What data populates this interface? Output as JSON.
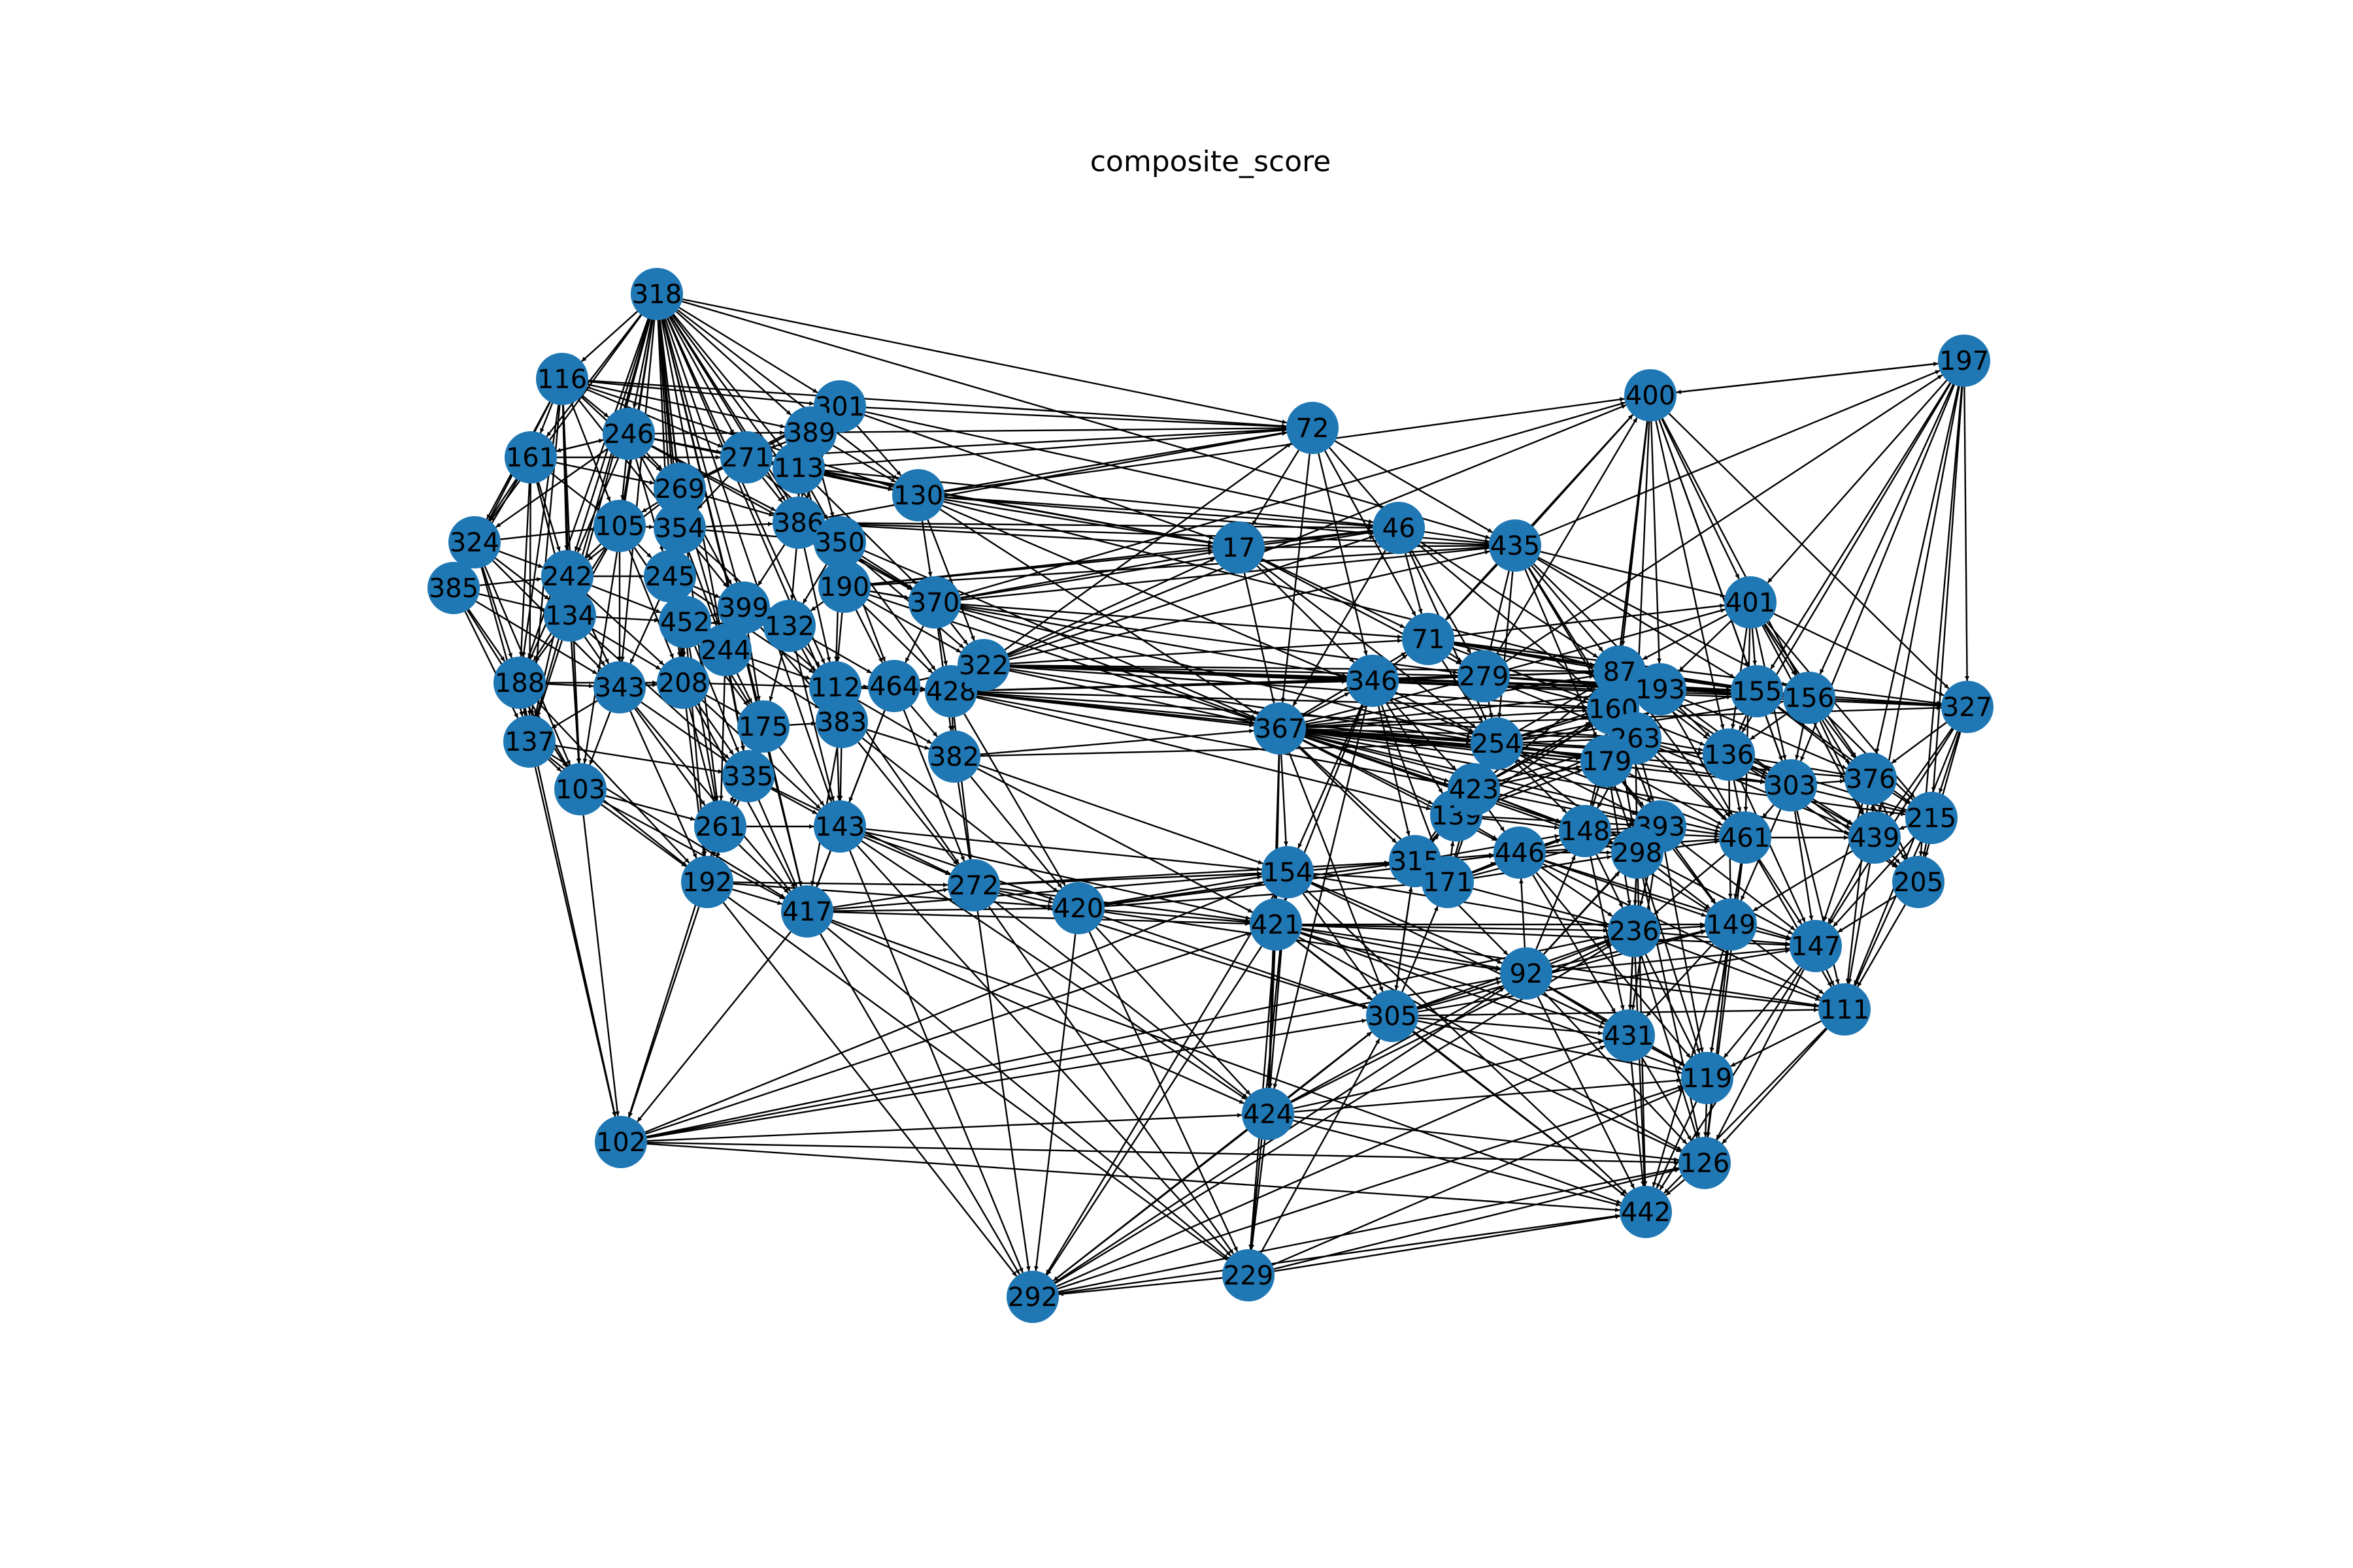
{
  "title": "composite_score",
  "style": {
    "node_color": "#1f77b4",
    "edge_color": "#000000",
    "label_color": "#000000",
    "background": "#ffffff"
  },
  "nodes": [
    {
      "id": "318"
    },
    {
      "id": "116"
    },
    {
      "id": "301"
    },
    {
      "id": "389"
    },
    {
      "id": "246"
    },
    {
      "id": "161"
    },
    {
      "id": "271"
    },
    {
      "id": "113"
    },
    {
      "id": "130"
    },
    {
      "id": "269"
    },
    {
      "id": "324"
    },
    {
      "id": "105"
    },
    {
      "id": "354"
    },
    {
      "id": "386"
    },
    {
      "id": "350"
    },
    {
      "id": "385"
    },
    {
      "id": "242"
    },
    {
      "id": "245"
    },
    {
      "id": "134"
    },
    {
      "id": "452"
    },
    {
      "id": "399"
    },
    {
      "id": "190"
    },
    {
      "id": "370"
    },
    {
      "id": "132"
    },
    {
      "id": "244"
    },
    {
      "id": "188"
    },
    {
      "id": "343"
    },
    {
      "id": "208"
    },
    {
      "id": "112"
    },
    {
      "id": "464"
    },
    {
      "id": "428"
    },
    {
      "id": "322"
    },
    {
      "id": "137"
    },
    {
      "id": "175"
    },
    {
      "id": "383"
    },
    {
      "id": "382"
    },
    {
      "id": "103"
    },
    {
      "id": "335"
    },
    {
      "id": "261"
    },
    {
      "id": "143"
    },
    {
      "id": "192"
    },
    {
      "id": "417"
    },
    {
      "id": "272"
    },
    {
      "id": "420"
    },
    {
      "id": "102"
    },
    {
      "id": "72"
    },
    {
      "id": "17"
    },
    {
      "id": "46"
    },
    {
      "id": "435"
    },
    {
      "id": "367"
    },
    {
      "id": "346"
    },
    {
      "id": "71"
    },
    {
      "id": "279"
    },
    {
      "id": "154"
    },
    {
      "id": "421"
    },
    {
      "id": "424"
    },
    {
      "id": "229"
    },
    {
      "id": "292"
    },
    {
      "id": "305"
    },
    {
      "id": "92"
    },
    {
      "id": "315"
    },
    {
      "id": "171"
    },
    {
      "id": "139"
    },
    {
      "id": "423"
    },
    {
      "id": "254"
    },
    {
      "id": "446"
    },
    {
      "id": "400"
    },
    {
      "id": "197"
    },
    {
      "id": "401"
    },
    {
      "id": "87"
    },
    {
      "id": "193"
    },
    {
      "id": "160"
    },
    {
      "id": "263"
    },
    {
      "id": "179"
    },
    {
      "id": "155"
    },
    {
      "id": "156"
    },
    {
      "id": "327"
    },
    {
      "id": "136"
    },
    {
      "id": "303"
    },
    {
      "id": "376"
    },
    {
      "id": "215"
    },
    {
      "id": "148"
    },
    {
      "id": "393"
    },
    {
      "id": "298"
    },
    {
      "id": "461"
    },
    {
      "id": "439"
    },
    {
      "id": "205"
    },
    {
      "id": "236"
    },
    {
      "id": "149"
    },
    {
      "id": "147"
    },
    {
      "id": "111"
    },
    {
      "id": "431"
    },
    {
      "id": "119"
    },
    {
      "id": "126"
    },
    {
      "id": "442"
    }
  ]
}
